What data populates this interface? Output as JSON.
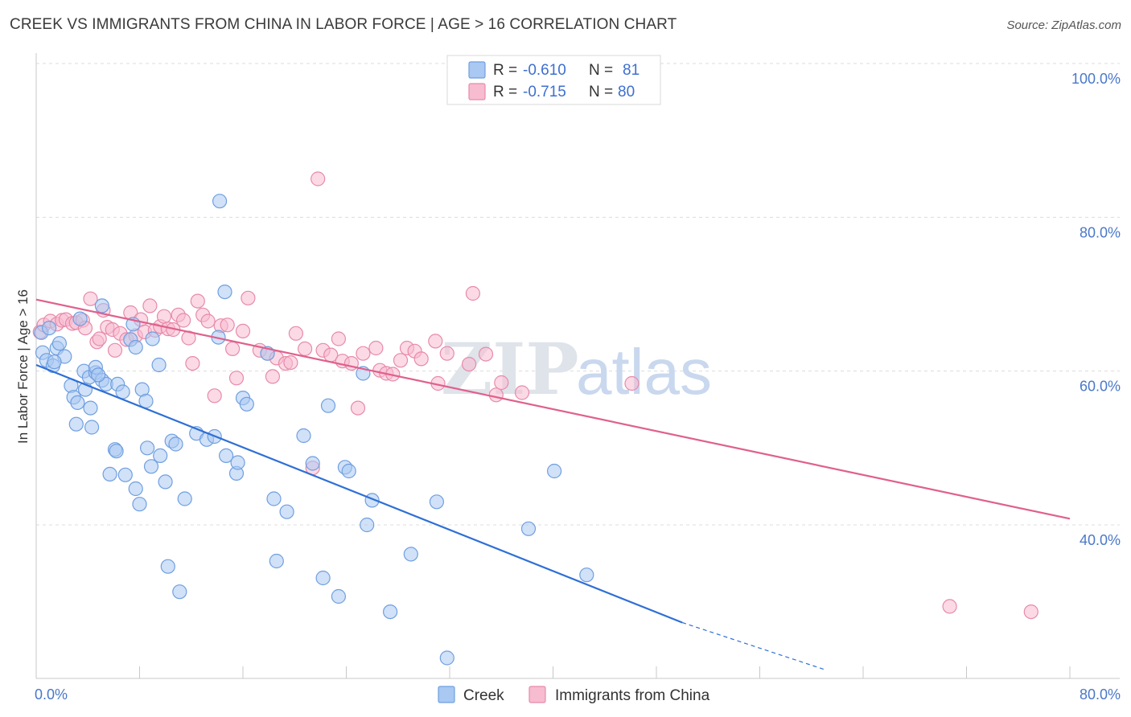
{
  "header": {
    "title": "CREEK VS IMMIGRANTS FROM CHINA IN LABOR FORCE | AGE > 16 CORRELATION CHART",
    "source": "Source: ZipAtlas.com"
  },
  "watermark": {
    "zip": "ZIP",
    "atlas": "atlas"
  },
  "legend": {
    "r_label": "R =",
    "n_label": "N =",
    "rows": [
      {
        "r": "-0.610",
        "n": "81",
        "color": "#a9c8f2",
        "stroke": "#6f9fe0"
      },
      {
        "r": "-0.715",
        "n": "80",
        "color": "#f7bcd0",
        "stroke": "#e88aaa"
      }
    ]
  },
  "chart_data": {
    "type": "scatter",
    "title": "CREEK VS IMMIGRANTS FROM CHINA IN LABOR FORCE | AGE > 16 CORRELATION CHART",
    "xlabel": "",
    "ylabel": "In Labor Force | Age > 16",
    "xlim": [
      0,
      80
    ],
    "ylim": [
      20,
      102
    ],
    "x_tick_labels": [
      "0.0%",
      "80.0%"
    ],
    "y_ticks": [
      40,
      60,
      80,
      100
    ],
    "y_tick_labels": [
      "40.0%",
      "60.0%",
      "80.0%",
      "100.0%"
    ],
    "grid": true,
    "legend_position": "top-center",
    "series": [
      {
        "name": "Creek",
        "color": "#6f9fe0",
        "fill": "#a9c8f2",
        "line_color": "#2f6fd6",
        "trend": {
          "x_start": 0,
          "y_start": 60.8,
          "x_end": 50,
          "y_end": 27.3,
          "dashed_to_x": 61,
          "dashed_to_y": 21.2
        },
        "points": [
          [
            0.5,
            62.4
          ],
          [
            0.8,
            61.4
          ],
          [
            1.3,
            60.7
          ],
          [
            1.6,
            63.0
          ],
          [
            1.8,
            63.6
          ],
          [
            2.2,
            61.9
          ],
          [
            2.7,
            58.1
          ],
          [
            2.9,
            56.6
          ],
          [
            3.2,
            55.9
          ],
          [
            3.1,
            53.1
          ],
          [
            3.4,
            66.8
          ],
          [
            5.1,
            68.5
          ],
          [
            3.8,
            57.6
          ],
          [
            3.7,
            60.0
          ],
          [
            4.1,
            59.2
          ],
          [
            4.6,
            59.8
          ],
          [
            4.6,
            60.5
          ],
          [
            5.1,
            58.8
          ],
          [
            5.4,
            58.3
          ],
          [
            6.3,
            58.3
          ],
          [
            6.7,
            57.3
          ],
          [
            4.2,
            55.2
          ],
          [
            4.3,
            52.7
          ],
          [
            5.7,
            46.6
          ],
          [
            6.1,
            49.8
          ],
          [
            6.2,
            49.6
          ],
          [
            6.9,
            46.5
          ],
          [
            7.3,
            64.1
          ],
          [
            7.5,
            66.1
          ],
          [
            7.7,
            63.1
          ],
          [
            8.2,
            57.6
          ],
          [
            8.5,
            56.1
          ],
          [
            7.7,
            44.7
          ],
          [
            8.0,
            42.7
          ],
          [
            8.6,
            50.0
          ],
          [
            8.9,
            47.6
          ],
          [
            9.5,
            60.8
          ],
          [
            9.0,
            64.2
          ],
          [
            9.6,
            49.0
          ],
          [
            10.0,
            45.6
          ],
          [
            10.5,
            50.9
          ],
          [
            10.8,
            50.5
          ],
          [
            11.5,
            43.4
          ],
          [
            10.2,
            34.6
          ],
          [
            11.1,
            31.3
          ],
          [
            12.4,
            51.9
          ],
          [
            13.2,
            51.1
          ],
          [
            13.8,
            51.5
          ],
          [
            14.7,
            49.0
          ],
          [
            14.1,
            64.4
          ],
          [
            14.2,
            82.1
          ],
          [
            14.6,
            70.3
          ],
          [
            15.5,
            46.7
          ],
          [
            15.6,
            48.1
          ],
          [
            16.0,
            56.5
          ],
          [
            16.3,
            55.7
          ],
          [
            17.9,
            62.3
          ],
          [
            18.4,
            43.4
          ],
          [
            18.6,
            35.3
          ],
          [
            19.4,
            41.7
          ],
          [
            20.7,
            51.6
          ],
          [
            21.4,
            48.0
          ],
          [
            22.2,
            33.1
          ],
          [
            22.6,
            55.5
          ],
          [
            23.4,
            30.7
          ],
          [
            23.9,
            47.5
          ],
          [
            24.2,
            47.0
          ],
          [
            25.3,
            59.7
          ],
          [
            25.6,
            40.0
          ],
          [
            26.0,
            43.2
          ],
          [
            27.4,
            28.7
          ],
          [
            29.0,
            36.2
          ],
          [
            31.0,
            43.0
          ],
          [
            31.8,
            22.7
          ],
          [
            38.1,
            39.5
          ],
          [
            40.1,
            47.0
          ],
          [
            42.6,
            33.5
          ],
          [
            0.4,
            65.0
          ],
          [
            1.0,
            65.6
          ],
          [
            1.4,
            61.2
          ],
          [
            4.8,
            59.5
          ]
        ]
      },
      {
        "name": "Immigrants from China",
        "color": "#e88aaa",
        "fill": "#f7bcd0",
        "line_color": "#e0608c",
        "trend": {
          "x_start": 0,
          "y_start": 69.3,
          "x_end": 80,
          "y_end": 40.8
        },
        "points": [
          [
            0.3,
            65.1
          ],
          [
            0.6,
            66.0
          ],
          [
            1.1,
            66.5
          ],
          [
            1.6,
            66.1
          ],
          [
            2.0,
            66.6
          ],
          [
            2.3,
            66.7
          ],
          [
            2.8,
            66.2
          ],
          [
            3.1,
            66.3
          ],
          [
            3.6,
            66.6
          ],
          [
            3.8,
            65.6
          ],
          [
            4.2,
            69.4
          ],
          [
            4.7,
            63.8
          ],
          [
            4.9,
            64.2
          ],
          [
            5.2,
            67.9
          ],
          [
            5.5,
            65.7
          ],
          [
            5.9,
            65.4
          ],
          [
            6.1,
            62.7
          ],
          [
            6.5,
            64.9
          ],
          [
            7.0,
            64.1
          ],
          [
            7.3,
            67.6
          ],
          [
            7.7,
            64.6
          ],
          [
            8.1,
            66.7
          ],
          [
            8.4,
            65.1
          ],
          [
            8.8,
            68.5
          ],
          [
            9.2,
            65.3
          ],
          [
            9.6,
            65.8
          ],
          [
            9.9,
            67.1
          ],
          [
            10.2,
            65.5
          ],
          [
            10.6,
            65.4
          ],
          [
            11.0,
            67.3
          ],
          [
            11.4,
            66.6
          ],
          [
            11.8,
            64.3
          ],
          [
            12.1,
            61.0
          ],
          [
            12.5,
            69.1
          ],
          [
            12.9,
            67.3
          ],
          [
            13.3,
            66.5
          ],
          [
            13.8,
            56.8
          ],
          [
            14.3,
            65.9
          ],
          [
            14.8,
            66.0
          ],
          [
            15.2,
            62.9
          ],
          [
            15.5,
            59.1
          ],
          [
            16.0,
            65.2
          ],
          [
            16.4,
            69.5
          ],
          [
            17.3,
            62.7
          ],
          [
            17.9,
            62.3
          ],
          [
            18.3,
            59.3
          ],
          [
            18.6,
            61.7
          ],
          [
            19.3,
            61.0
          ],
          [
            19.7,
            61.1
          ],
          [
            20.1,
            64.9
          ],
          [
            20.8,
            62.9
          ],
          [
            21.4,
            47.4
          ],
          [
            21.8,
            85.0
          ],
          [
            22.2,
            62.7
          ],
          [
            22.8,
            62.1
          ],
          [
            23.4,
            64.2
          ],
          [
            23.7,
            61.3
          ],
          [
            24.4,
            61.0
          ],
          [
            24.9,
            55.2
          ],
          [
            25.3,
            62.3
          ],
          [
            26.3,
            63.0
          ],
          [
            26.6,
            60.1
          ],
          [
            27.1,
            59.7
          ],
          [
            27.6,
            59.6
          ],
          [
            28.2,
            61.4
          ],
          [
            28.7,
            63.0
          ],
          [
            29.3,
            62.6
          ],
          [
            29.8,
            61.6
          ],
          [
            30.9,
            63.9
          ],
          [
            31.1,
            58.4
          ],
          [
            31.8,
            62.3
          ],
          [
            33.5,
            60.9
          ],
          [
            33.8,
            70.1
          ],
          [
            34.8,
            62.2
          ],
          [
            35.6,
            56.9
          ],
          [
            36.0,
            58.5
          ],
          [
            37.6,
            57.2
          ],
          [
            46.1,
            58.4
          ],
          [
            70.7,
            29.4
          ],
          [
            77.0,
            28.7
          ]
        ]
      }
    ]
  }
}
